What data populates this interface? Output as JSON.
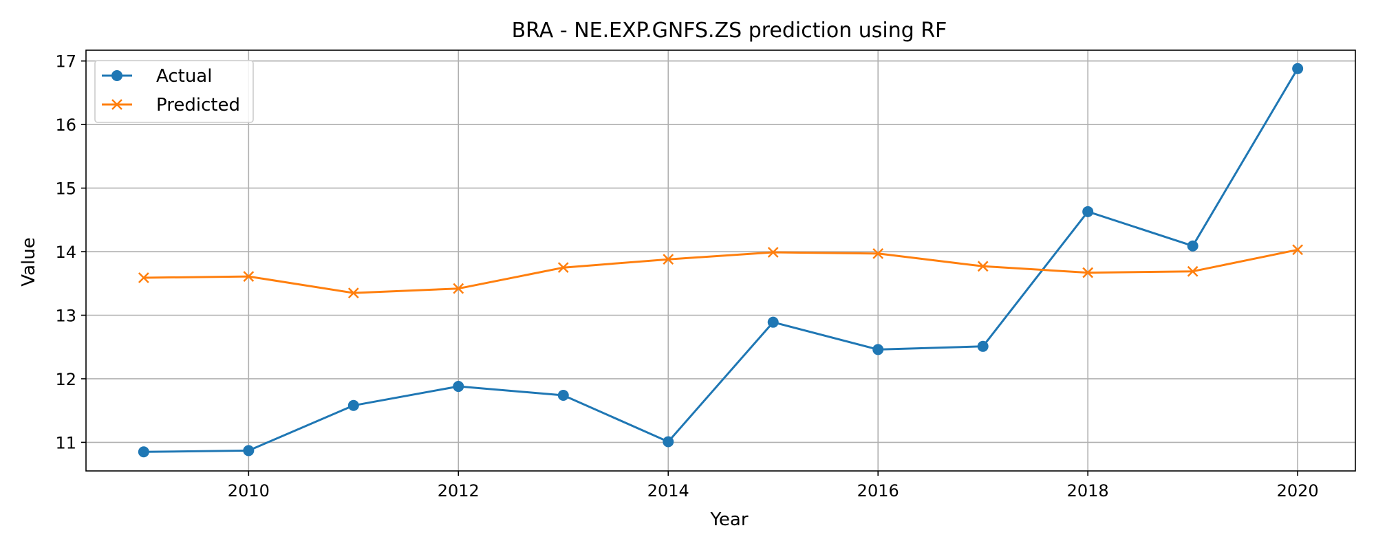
{
  "chart_data": {
    "type": "line",
    "title": "BRA - NE.EXP.GNFS.ZS prediction using RF",
    "xlabel": "Year",
    "ylabel": "Value",
    "x": [
      2009,
      2010,
      2011,
      2012,
      2013,
      2014,
      2015,
      2016,
      2017,
      2018,
      2019,
      2020
    ],
    "xlim": [
      2008.45,
      2020.55
    ],
    "ylim": [
      10.55,
      17.17
    ],
    "xticks": [
      2010,
      2012,
      2014,
      2016,
      2018,
      2020
    ],
    "yticks": [
      11,
      12,
      13,
      14,
      15,
      16,
      17
    ],
    "grid": true,
    "legend_position": "top-left",
    "series": [
      {
        "name": "Actual",
        "color": "#1f77b4",
        "marker": "circle",
        "values": [
          10.85,
          10.87,
          11.58,
          11.88,
          11.74,
          11.01,
          12.89,
          12.46,
          12.51,
          14.63,
          14.09,
          16.88
        ]
      },
      {
        "name": "Predicted",
        "color": "#ff7f0e",
        "marker": "x",
        "values": [
          13.59,
          13.61,
          13.35,
          13.42,
          13.75,
          13.88,
          13.99,
          13.97,
          13.77,
          13.67,
          13.69,
          14.03
        ]
      }
    ]
  }
}
